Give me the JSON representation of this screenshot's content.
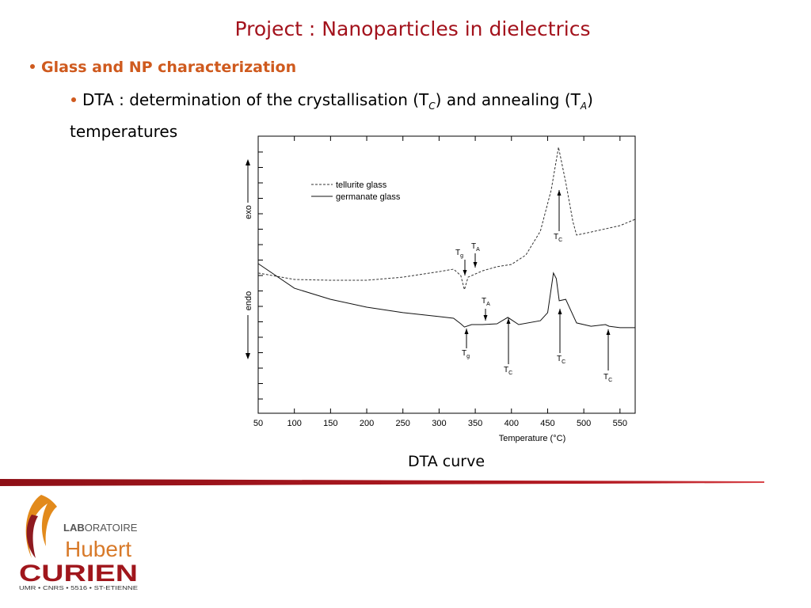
{
  "title": "Project : Nanoparticles in dielectrics",
  "bullet1": "Glass and NP characterization",
  "bullet2": {
    "parts": [
      "DTA : determination of the crystallisation (T",
      "C",
      ") and annealing (T",
      "A",
      ")"
    ],
    "line2": "temperatures"
  },
  "caption": "DTA curve",
  "logo": {
    "lab_bold": "LAB",
    "lab_rest": "ORATOIRE",
    "name1": "Hubert",
    "name2": "CURIEN",
    "footer": "UMR • CNRS • 5516 • ST-ETIENNE"
  },
  "chart_data": {
    "type": "line",
    "x_label": "Temperature (°C)",
    "y_label_top": "exo",
    "y_label_bottom": "endo",
    "xlim": [
      50,
      571
    ],
    "ylim": [
      0,
      100
    ],
    "xticks": [
      50,
      100,
      150,
      200,
      250,
      300,
      350,
      400,
      450,
      500,
      550
    ],
    "series": [
      {
        "name": "tellurite glass",
        "color": "#333333",
        "dash": true,
        "x": [
          50,
          100,
          150,
          200,
          250,
          300,
          320,
          330,
          335,
          340,
          360,
          380,
          400,
          420,
          440,
          455,
          465,
          475,
          485,
          490,
          510,
          550,
          571
        ],
        "values": [
          50.6,
          48.3,
          48,
          48,
          49.1,
          51.1,
          52,
          49.7,
          44.6,
          49.1,
          51.4,
          52.9,
          53.7,
          57.1,
          65.7,
          80.6,
          96,
          83.4,
          69.1,
          64.3,
          65.4,
          67.7,
          70
        ]
      },
      {
        "name": "germanate glass",
        "color": "#111111",
        "dash": false,
        "x": [
          50,
          100,
          150,
          200,
          250,
          300,
          320,
          330,
          335,
          345,
          360,
          380,
          395,
          410,
          440,
          450,
          458,
          462,
          466,
          475,
          490,
          510,
          530,
          535,
          550,
          571
        ],
        "values": [
          54,
          45.1,
          41.1,
          38.3,
          36.3,
          34.9,
          34.3,
          32.3,
          31.1,
          32,
          32,
          32.3,
          34.6,
          32,
          33.4,
          36.3,
          50.6,
          48.6,
          40.6,
          41.1,
          32.6,
          31.4,
          32,
          31.4,
          30.9,
          30.9
        ]
      }
    ],
    "annotations": [
      {
        "text": "T",
        "sub": "g"
      },
      {
        "text": "T",
        "sub": "A"
      },
      {
        "text": "T",
        "sub": "C"
      },
      {
        "text": "T",
        "sub": "A"
      },
      {
        "text": "T",
        "sub": "g"
      },
      {
        "text": "T",
        "sub": "C"
      },
      {
        "text": "T",
        "sub": "C"
      },
      {
        "text": "T",
        "sub": "C"
      }
    ]
  }
}
